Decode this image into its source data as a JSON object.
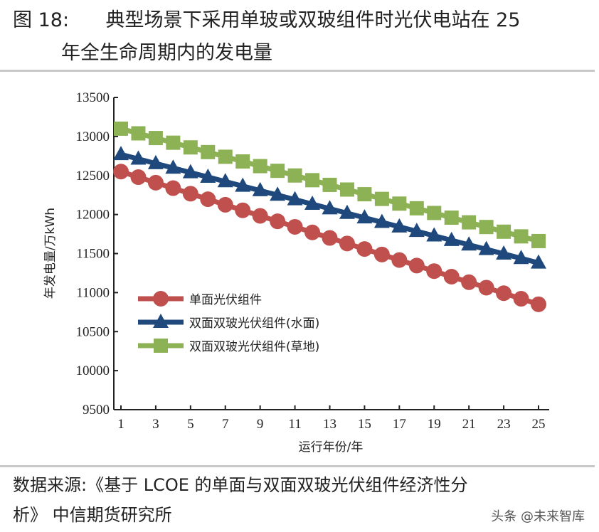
{
  "figure": {
    "number": "图 18:",
    "title_line1": "典型场景下采用单玻或双玻组件时光伏电站在 25",
    "title_line2": "年全生命周期内的发电量"
  },
  "source": {
    "line1": "数据来源:《基于 LCOE 的单面与双面双玻光伏组件经济性分",
    "line2": "析》 中信期货研究所"
  },
  "watermark": "头条 @未来智库",
  "chart_data": {
    "type": "line",
    "title": "",
    "xlabel": "运行年份/年",
    "ylabel": "年发电量/万kWh",
    "ylim": [
      9500,
      13500
    ],
    "yticks": [
      9500,
      10000,
      10500,
      11000,
      11500,
      12000,
      12500,
      13000,
      13500
    ],
    "xticks": [
      1,
      3,
      5,
      7,
      9,
      11,
      13,
      15,
      17,
      19,
      21,
      23,
      25
    ],
    "x": [
      1,
      2,
      3,
      4,
      5,
      6,
      7,
      8,
      9,
      10,
      11,
      12,
      13,
      14,
      15,
      16,
      17,
      18,
      19,
      20,
      21,
      22,
      23,
      24,
      25
    ],
    "legend_position": "center-left",
    "grid": false,
    "series": [
      {
        "name": "单面光伏组件",
        "color": "#c0504d",
        "marker": "circle",
        "values": [
          12550,
          12479,
          12408,
          12338,
          12267,
          12196,
          12125,
          12054,
          11983,
          11913,
          11842,
          11771,
          11700,
          11629,
          11558,
          11488,
          11417,
          11346,
          11275,
          11204,
          11133,
          11063,
          10992,
          10921,
          10850
        ]
      },
      {
        "name": "双面双玻光伏组件(水面)",
        "color": "#1f497d",
        "marker": "triangle",
        "values": [
          12770,
          12712,
          12654,
          12596,
          12538,
          12480,
          12422,
          12364,
          12307,
          12249,
          12191,
          12133,
          12075,
          12017,
          11959,
          11901,
          11843,
          11786,
          11728,
          11670,
          11612,
          11554,
          11496,
          11438,
          11380
        ]
      },
      {
        "name": "双面双玻光伏组件(草地)",
        "color": "#8db255",
        "marker": "square",
        "values": [
          13100,
          13040,
          12980,
          12920,
          12860,
          12800,
          12740,
          12680,
          12620,
          12560,
          12500,
          12440,
          12380,
          12320,
          12260,
          12200,
          12140,
          12080,
          12020,
          11960,
          11900,
          11840,
          11780,
          11720,
          11660
        ]
      }
    ]
  }
}
